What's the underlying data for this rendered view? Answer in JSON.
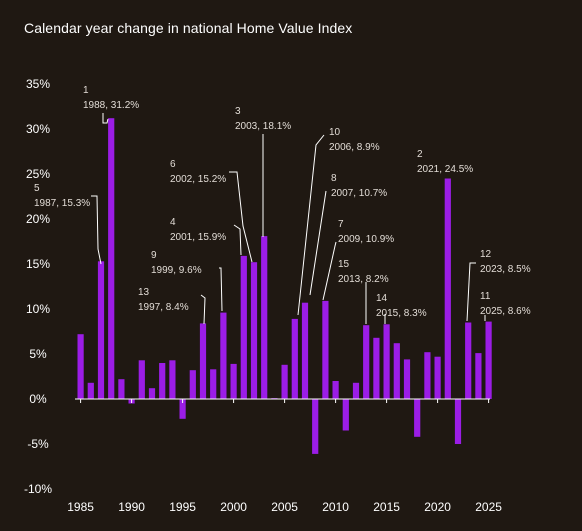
{
  "chart_data": {
    "type": "bar",
    "title": "Calendar year change in national Home Value Index",
    "xlabel": "",
    "ylabel": "",
    "ylim": [
      -10,
      35
    ],
    "y_ticks": [
      35,
      30,
      25,
      20,
      15,
      10,
      5,
      0,
      -5,
      -10
    ],
    "y_tick_format": "%",
    "x_ticks": [
      1985,
      1990,
      1995,
      2000,
      2005,
      2010,
      2015,
      2020,
      2025
    ],
    "bar_color": "#9b1de6",
    "background": "#1f1812",
    "grid": false,
    "categories": [
      1985,
      1986,
      1987,
      1988,
      1989,
      1990,
      1991,
      1992,
      1993,
      1994,
      1995,
      1996,
      1997,
      1998,
      1999,
      2000,
      2001,
      2002,
      2003,
      2004,
      2005,
      2006,
      2007,
      2008,
      2009,
      2010,
      2011,
      2012,
      2013,
      2014,
      2015,
      2016,
      2017,
      2018,
      2019,
      2020,
      2021,
      2022,
      2023,
      2024,
      2025
    ],
    "values": [
      7.2,
      1.8,
      15.3,
      31.2,
      2.2,
      -0.5,
      4.3,
      1.2,
      4.0,
      4.3,
      -2.2,
      3.2,
      8.4,
      3.3,
      9.6,
      3.9,
      15.9,
      15.2,
      18.1,
      0.1,
      3.8,
      8.9,
      10.7,
      -6.1,
      10.9,
      2.0,
      -3.5,
      1.8,
      8.2,
      6.8,
      8.3,
      6.2,
      4.4,
      -4.2,
      5.2,
      4.7,
      24.5,
      -5.0,
      8.5,
      5.1,
      8.6
    ],
    "annotations": [
      {
        "rank": "1",
        "label": "1988, 31.2%",
        "year": 1988,
        "value": 31.2
      },
      {
        "rank": "2",
        "label": "2021, 24.5%",
        "year": 2021,
        "value": 24.5
      },
      {
        "rank": "3",
        "label": "2003, 18.1%",
        "year": 2003,
        "value": 18.1
      },
      {
        "rank": "4",
        "label": "2001, 15.9%",
        "year": 2001,
        "value": 15.9
      },
      {
        "rank": "5",
        "label": "1987, 15.3%",
        "year": 1987,
        "value": 15.3
      },
      {
        "rank": "6",
        "label": "2002, 15.2%",
        "year": 2002,
        "value": 15.2
      },
      {
        "rank": "7",
        "label": "2009, 10.9%",
        "year": 2009,
        "value": 10.9
      },
      {
        "rank": "8",
        "label": "2007, 10.7%",
        "year": 2007,
        "value": 10.7
      },
      {
        "rank": "9",
        "label": "1999, 9.6%",
        "year": 1999,
        "value": 9.6
      },
      {
        "rank": "10",
        "label": "2006, 8.9%",
        "year": 2006,
        "value": 8.9
      },
      {
        "rank": "11",
        "label": "2025, 8.6%",
        "year": 2025,
        "value": 8.6
      },
      {
        "rank": "12",
        "label": "2023, 8.5%",
        "year": 2023,
        "value": 8.5
      },
      {
        "rank": "13",
        "label": "1997, 8.4%",
        "year": 1997,
        "value": 8.4
      },
      {
        "rank": "14",
        "label": "2015, 8.3%",
        "year": 2015,
        "value": 8.3
      },
      {
        "rank": "15",
        "label": "2013, 8.2%",
        "year": 2013,
        "value": 8.2
      }
    ]
  }
}
